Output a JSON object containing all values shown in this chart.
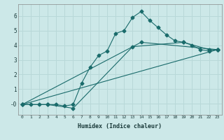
{
  "xlabel": "Humidex (Indice chaleur)",
  "ylabel": "",
  "background_color": "#cce8e8",
  "grid_color": "#b8d8d8",
  "line_color": "#1a6b6b",
  "xlim": [
    -0.5,
    23.5
  ],
  "ylim": [
    -0.75,
    6.8
  ],
  "xticks": [
    0,
    1,
    2,
    3,
    4,
    5,
    6,
    7,
    8,
    9,
    10,
    11,
    12,
    13,
    14,
    15,
    16,
    17,
    18,
    19,
    20,
    21,
    22,
    23
  ],
  "yticks": [
    0,
    1,
    2,
    3,
    4,
    5,
    6
  ],
  "ytick_labels": [
    "-0",
    "1",
    "2",
    "3",
    "4",
    "5",
    "6"
  ],
  "line1_x": [
    0,
    1,
    2,
    3,
    4,
    5,
    6,
    7,
    8,
    9,
    10,
    11,
    12,
    13,
    14,
    15,
    16,
    17,
    18,
    19,
    20,
    21,
    22,
    23
  ],
  "line1_y": [
    -0.05,
    -0.05,
    -0.05,
    -0.05,
    -0.05,
    -0.15,
    -0.05,
    1.4,
    2.5,
    3.3,
    3.6,
    4.8,
    5.0,
    5.9,
    6.3,
    5.7,
    5.2,
    4.7,
    4.3,
    4.2,
    4.0,
    3.7,
    3.6,
    3.7
  ],
  "line2_x": [
    0,
    3,
    6,
    13,
    19,
    22,
    23
  ],
  "line2_y": [
    -0.05,
    -0.05,
    -0.3,
    3.9,
    4.2,
    3.7,
    3.7
  ],
  "line3_x": [
    0,
    14,
    23
  ],
  "line3_y": [
    -0.05,
    4.2,
    3.7
  ],
  "line4_x": [
    0,
    23
  ],
  "line4_y": [
    -0.05,
    3.7
  ]
}
